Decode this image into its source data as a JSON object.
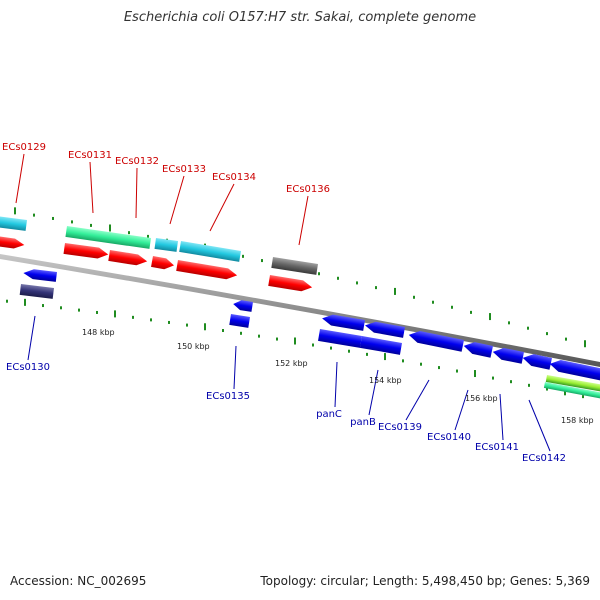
{
  "title": "Escherichia coli O157:H7 str. Sakai, complete genome",
  "footer": {
    "accession": "Accession: NC_002695",
    "summary": "Topology: circular; Length: 5,498,450 bp; Genes: 5,369"
  },
  "colors": {
    "backbone": "#8c8c8c",
    "tick": "#1f8c1f",
    "label_top": "#cc0000",
    "label_bottom": "#0000aa",
    "cds_forward": "#ff0000",
    "cds_reverse": "#0000ee",
    "green_feature": "#33ee99",
    "cyan_feature": "#22c8e0",
    "gray_feature": "#666666",
    "navy_feature": "#333377",
    "lime_feature": "#99ee33"
  },
  "scale_labels": [
    "148 kbp",
    "150 kbp",
    "152 kbp",
    "154 kbp",
    "156 kbp",
    "158 kbp"
  ],
  "genes_top": [
    "ECs0129",
    "ECs0131",
    "ECs0132",
    "ECs0133",
    "ECs0134",
    "ECs0136"
  ],
  "genes_bottom": [
    "ECs0130",
    "ECs0135",
    "panC",
    "panB",
    "ECs0139",
    "ECs0140",
    "ECs0141",
    "ECs0142"
  ]
}
